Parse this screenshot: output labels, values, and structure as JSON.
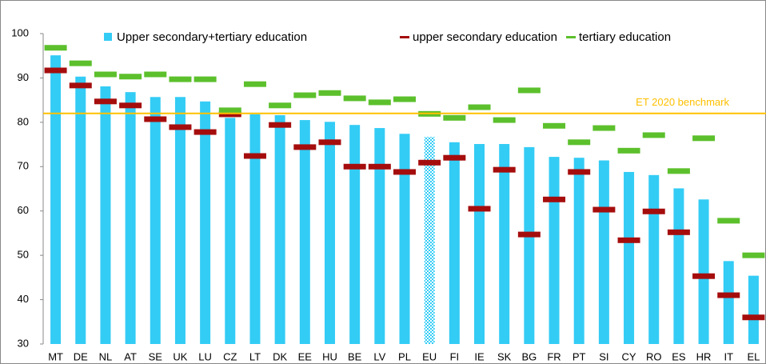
{
  "chart_data": {
    "type": "bar",
    "categories": [
      "MT",
      "DE",
      "NL",
      "AT",
      "SE",
      "UK",
      "LU",
      "CZ",
      "LT",
      "DK",
      "EE",
      "HU",
      "BE",
      "LV",
      "PL",
      "EU",
      "FI",
      "IE",
      "SK",
      "BG",
      "FR",
      "PT",
      "SI",
      "CY",
      "RO",
      "ES",
      "HR",
      "IT",
      "EL"
    ],
    "series": [
      {
        "name": "Upper secondary+tertiary education",
        "color": "#33ccf5",
        "kind": "bar",
        "values": [
          95.1,
          90.3,
          88.1,
          86.8,
          85.7,
          85.7,
          84.7,
          81.0,
          81.8,
          81.6,
          80.5,
          80.1,
          79.4,
          78.7,
          77.4,
          76.7,
          75.5,
          75.1,
          75.1,
          74.4,
          72.2,
          72.0,
          71.4,
          68.8,
          68.1,
          65.1,
          62.6,
          48.7,
          45.4
        ]
      },
      {
        "name": "upper secondary education",
        "color": "#a50d0d",
        "kind": "marker",
        "values": [
          91.7,
          88.3,
          84.7,
          83.8,
          80.7,
          78.9,
          77.8,
          81.8,
          72.4,
          79.4,
          74.4,
          75.5,
          70.0,
          70.0,
          68.8,
          70.9,
          72.0,
          60.5,
          69.3,
          54.7,
          62.6,
          68.8,
          60.3,
          53.4,
          59.9,
          55.2,
          45.3,
          41.0,
          36.0
        ]
      },
      {
        "name": "tertiary education",
        "color": "#5cc02c",
        "kind": "marker",
        "values": [
          96.8,
          93.3,
          90.8,
          90.3,
          90.8,
          89.7,
          89.7,
          82.7,
          88.6,
          83.8,
          86.1,
          86.6,
          85.4,
          84.5,
          85.2,
          81.9,
          81.0,
          83.4,
          80.5,
          87.2,
          79.2,
          75.5,
          78.7,
          73.6,
          77.1,
          69.0,
          76.4,
          57.8,
          50.0
        ]
      }
    ],
    "patterned_index": 15,
    "reference_lines": [
      {
        "value": 82,
        "label": "ET 2020 benchmark",
        "color": "#ffc000"
      }
    ],
    "ylim": [
      30,
      100
    ],
    "yticks": [
      30,
      40,
      50,
      60,
      70,
      80,
      90,
      100
    ],
    "grid": false
  }
}
